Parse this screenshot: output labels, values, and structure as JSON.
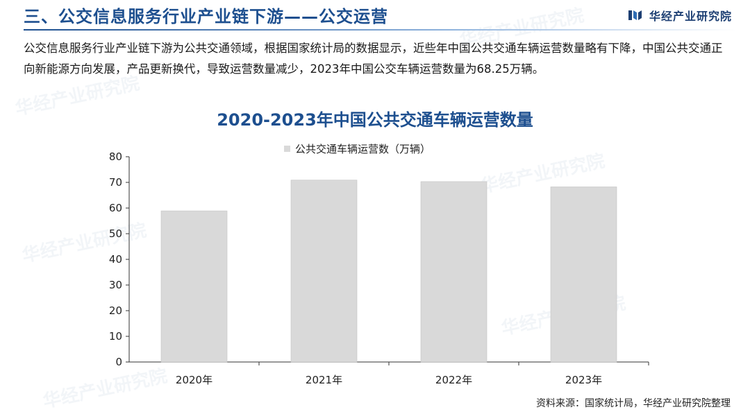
{
  "header": {
    "title": "三、公交信息服务行业产业链下游——公交运营",
    "logo_text": "华经产业研究院"
  },
  "intro": "公交信息服务行业产业链下游为公共交通领域，根据国家统计局的数据显示，近些年中国公共交通车辆运营数量略有下降，中国公共交通正向新能源方向发展，产品更新换代，导致运营数量减少，2023年中国公交车辆运营数量为68.25万辆。",
  "colors": {
    "accent": "#1d4f8f",
    "bar": "#d9d9d9"
  },
  "chart_data": {
    "type": "bar",
    "title": "2020-2023年中国公共交通车辆运营数量",
    "categories": [
      "2020年",
      "2021年",
      "2022年",
      "2023年"
    ],
    "series": [
      {
        "name": "公共交通车辆运营数（万辆）",
        "values": [
          58.9,
          70.9,
          70.3,
          68.25
        ]
      }
    ],
    "xlabel": "",
    "ylabel": "",
    "ylim": [
      0,
      80
    ],
    "yticks": [
      0,
      10,
      20,
      30,
      40,
      50,
      60,
      70,
      80
    ],
    "grid": false,
    "legend": "top"
  },
  "source": "资料来源：国家统计局，华经产业研究院整理",
  "watermark": "华经产业研究院"
}
